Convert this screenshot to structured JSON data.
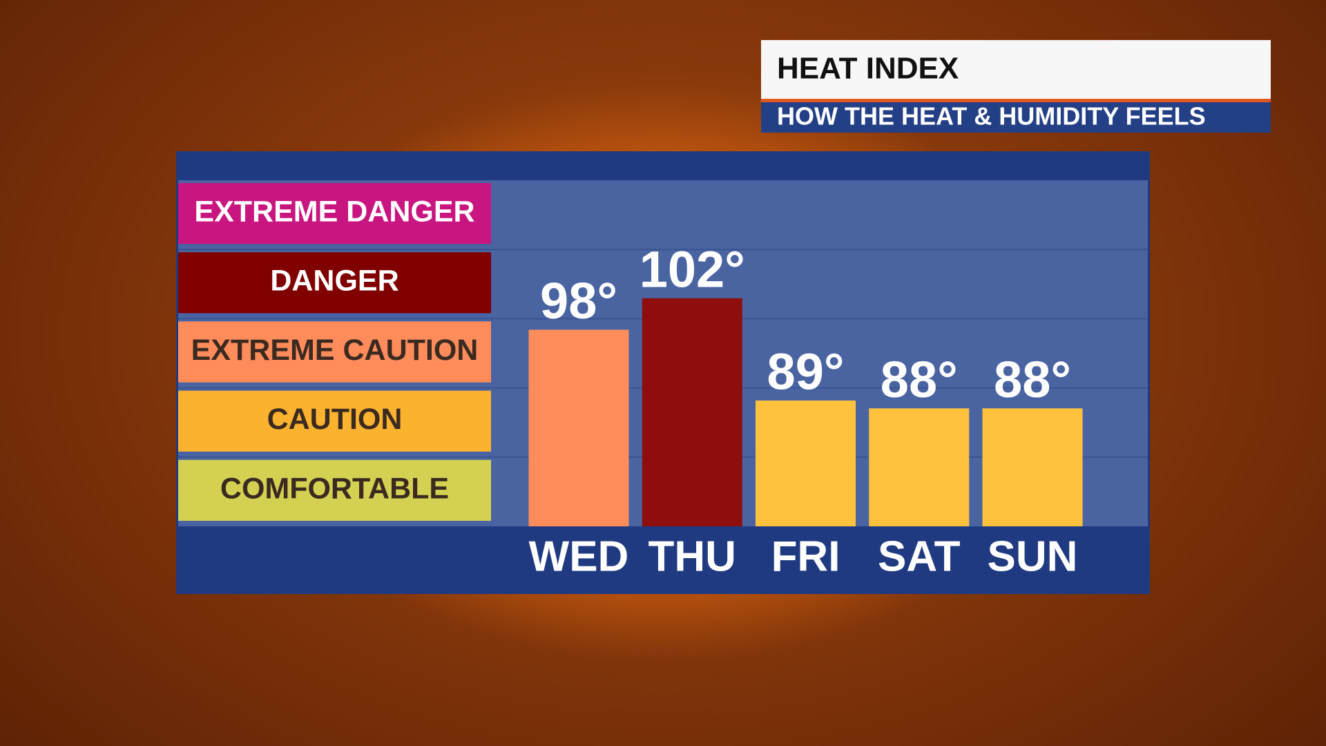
{
  "chart_data": {
    "type": "bar",
    "title": "HEAT INDEX",
    "subtitle": "HOW THE HEAT & HUMIDITY FEELS",
    "categories": [
      "WED",
      "THU",
      "FRI",
      "SAT",
      "SUN"
    ],
    "values": [
      98,
      102,
      89,
      88,
      88
    ],
    "value_labels": [
      "98°",
      "102°",
      "89°",
      "88°",
      "88°"
    ],
    "colors": [
      "#ff8c5a",
      "#8e0e0e",
      "#ffc23e",
      "#ffc23e",
      "#ffc23e"
    ],
    "ylim": [
      73,
      117
    ],
    "bands": [
      {
        "label": "EXTREME DANGER",
        "color": "#c8157f",
        "text_color": "#ffffff"
      },
      {
        "label": "DANGER",
        "color": "#800000",
        "text_color": "#ffffff"
      },
      {
        "label": "EXTREME CAUTION",
        "color": "#ff8c5a",
        "text_color": "#3a2a20"
      },
      {
        "label": "CAUTION",
        "color": "#fbb22f",
        "text_color": "#3a2a20"
      },
      {
        "label": "COMFORTABLE",
        "color": "#d4d052",
        "text_color": "#3a2a20"
      }
    ]
  }
}
